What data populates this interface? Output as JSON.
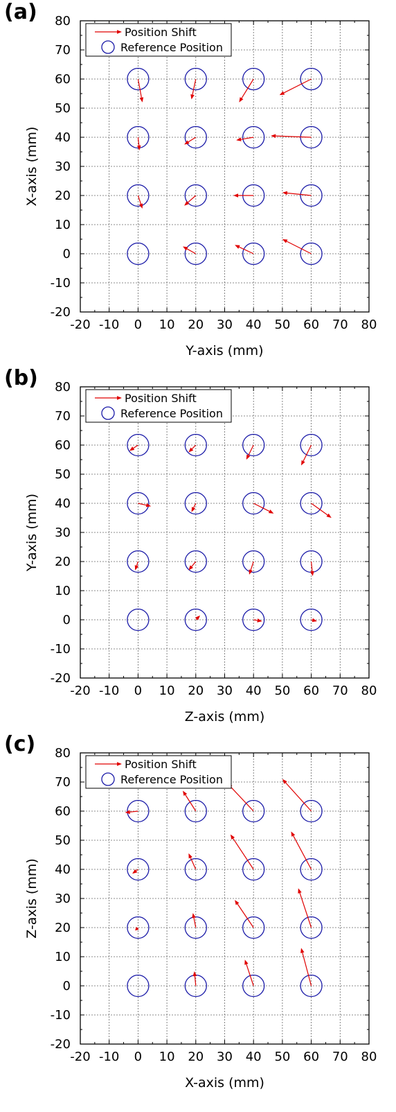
{
  "colors": {
    "arrow": "#e00000",
    "circle": "#1a1aa8",
    "axis": "#000000",
    "grid": "#666666"
  },
  "chart_data": [
    {
      "type": "scatter",
      "panel_label": "(a)",
      "xlabel": "Y-axis (mm)",
      "ylabel": "X-axis (mm)",
      "xlim": [
        -20,
        80
      ],
      "ylim": [
        -20,
        80
      ],
      "ticks": [
        -20,
        -10,
        0,
        10,
        20,
        30,
        40,
        50,
        60,
        70,
        80
      ],
      "grid": true,
      "legend": {
        "placement": "top-left",
        "entries": [
          "Position Shift",
          "Reference Position"
        ]
      },
      "series": [
        {
          "name": "Reference Position",
          "points": [
            [
              0,
              0
            ],
            [
              20,
              0
            ],
            [
              40,
              0
            ],
            [
              60,
              0
            ],
            [
              0,
              20
            ],
            [
              20,
              20
            ],
            [
              40,
              20
            ],
            [
              60,
              20
            ],
            [
              0,
              40
            ],
            [
              20,
              40
            ],
            [
              40,
              40
            ],
            [
              60,
              40
            ],
            [
              0,
              60
            ],
            [
              20,
              60
            ],
            [
              40,
              60
            ],
            [
              60,
              60
            ]
          ]
        },
        {
          "name": "Position Shift",
          "vectors": [
            {
              "from": [
                0,
                0
              ],
              "to": [
                0,
                0
              ]
            },
            {
              "from": [
                20,
                0
              ],
              "to": [
                15.5,
                2.5
              ]
            },
            {
              "from": [
                40,
                0
              ],
              "to": [
                33.5,
                3
              ]
            },
            {
              "from": [
                60,
                0
              ],
              "to": [
                50,
                5
              ]
            },
            {
              "from": [
                0,
                20
              ],
              "to": [
                1.5,
                15.5
              ]
            },
            {
              "from": [
                20,
                20
              ],
              "to": [
                16,
                16.5
              ]
            },
            {
              "from": [
                40,
                20
              ],
              "to": [
                33,
                20
              ]
            },
            {
              "from": [
                60,
                20
              ],
              "to": [
                50,
                21
              ]
            },
            {
              "from": [
                0,
                40
              ],
              "to": [
                0.5,
                35.5
              ]
            },
            {
              "from": [
                20,
                40
              ],
              "to": [
                16,
                37.5
              ]
            },
            {
              "from": [
                40,
                40
              ],
              "to": [
                34,
                39
              ]
            },
            {
              "from": [
                60,
                40
              ],
              "to": [
                46,
                40.5
              ]
            },
            {
              "from": [
                0,
                60
              ],
              "to": [
                1.5,
                52
              ]
            },
            {
              "from": [
                20,
                60
              ],
              "to": [
                18.5,
                53
              ]
            },
            {
              "from": [
                40,
                60
              ],
              "to": [
                35,
                52
              ]
            },
            {
              "from": [
                60,
                60
              ],
              "to": [
                49,
                54.5
              ]
            }
          ]
        }
      ]
    },
    {
      "type": "scatter",
      "panel_label": "(b)",
      "xlabel": "Z-axis (mm)",
      "ylabel": "Y-axis (mm)",
      "xlim": [
        -20,
        80
      ],
      "ylim": [
        -20,
        80
      ],
      "ticks": [
        -20,
        -10,
        0,
        10,
        20,
        30,
        40,
        50,
        60,
        70,
        80
      ],
      "grid": true,
      "legend": {
        "placement": "top-left",
        "entries": [
          "Position Shift",
          "Reference Position"
        ]
      },
      "series": [
        {
          "name": "Reference Position",
          "points": [
            [
              0,
              0
            ],
            [
              20,
              0
            ],
            [
              40,
              0
            ],
            [
              60,
              0
            ],
            [
              0,
              20
            ],
            [
              20,
              20
            ],
            [
              40,
              20
            ],
            [
              60,
              20
            ],
            [
              0,
              40
            ],
            [
              20,
              40
            ],
            [
              40,
              40
            ],
            [
              60,
              40
            ],
            [
              0,
              60
            ],
            [
              20,
              60
            ],
            [
              40,
              60
            ],
            [
              60,
              60
            ]
          ]
        },
        {
          "name": "Position Shift",
          "vectors": [
            {
              "from": [
                0,
                0
              ],
              "to": [
                0,
                0
              ]
            },
            {
              "from": [
                20,
                0
              ],
              "to": [
                21.5,
                1.5
              ]
            },
            {
              "from": [
                40,
                0
              ],
              "to": [
                43,
                -0.5
              ]
            },
            {
              "from": [
                60,
                0
              ],
              "to": [
                62,
                -0.5
              ]
            },
            {
              "from": [
                0,
                20
              ],
              "to": [
                -1,
                17
              ]
            },
            {
              "from": [
                20,
                20
              ],
              "to": [
                17.5,
                17
              ]
            },
            {
              "from": [
                40,
                20
              ],
              "to": [
                38.5,
                15.5
              ]
            },
            {
              "from": [
                60,
                20
              ],
              "to": [
                60.5,
                15
              ]
            },
            {
              "from": [
                0,
                40
              ],
              "to": [
                4.5,
                39
              ]
            },
            {
              "from": [
                20,
                40
              ],
              "to": [
                18.5,
                37
              ]
            },
            {
              "from": [
                40,
                40
              ],
              "to": [
                47,
                36.5
              ]
            },
            {
              "from": [
                60,
                40
              ],
              "to": [
                67,
                35
              ]
            },
            {
              "from": [
                0,
                60
              ],
              "to": [
                -3,
                58
              ]
            },
            {
              "from": [
                20,
                60
              ],
              "to": [
                17.5,
                57.5
              ]
            },
            {
              "from": [
                40,
                60
              ],
              "to": [
                37.5,
                55
              ]
            },
            {
              "from": [
                60,
                60
              ],
              "to": [
                56.5,
                53
              ]
            }
          ]
        }
      ]
    },
    {
      "type": "scatter",
      "panel_label": "(c)",
      "xlabel": "X-axis (mm)",
      "ylabel": "Z-axis (mm)",
      "xlim": [
        -20,
        80
      ],
      "ylim": [
        -20,
        80
      ],
      "ticks": [
        -20,
        -10,
        0,
        10,
        20,
        30,
        40,
        50,
        60,
        70,
        80
      ],
      "grid": true,
      "legend": {
        "placement": "top-left",
        "entries": [
          "Position Shift",
          "Reference Position"
        ]
      },
      "series": [
        {
          "name": "Reference Position",
          "points": [
            [
              0,
              0
            ],
            [
              20,
              0
            ],
            [
              40,
              0
            ],
            [
              60,
              0
            ],
            [
              0,
              20
            ],
            [
              20,
              20
            ],
            [
              40,
              20
            ],
            [
              60,
              20
            ],
            [
              0,
              40
            ],
            [
              20,
              40
            ],
            [
              40,
              40
            ],
            [
              60,
              40
            ],
            [
              0,
              60
            ],
            [
              20,
              60
            ],
            [
              40,
              60
            ],
            [
              60,
              60
            ]
          ]
        },
        {
          "name": "Position Shift",
          "vectors": [
            {
              "from": [
                0,
                0
              ],
              "to": [
                0,
                0
              ]
            },
            {
              "from": [
                20,
                0
              ],
              "to": [
                19.5,
                5
              ]
            },
            {
              "from": [
                40,
                0
              ],
              "to": [
                37,
                9
              ]
            },
            {
              "from": [
                60,
                0
              ],
              "to": [
                56.5,
                13
              ]
            },
            {
              "from": [
                0,
                20
              ],
              "to": [
                -1,
                19
              ]
            },
            {
              "from": [
                20,
                20
              ],
              "to": [
                19,
                25
              ]
            },
            {
              "from": [
                40,
                20
              ],
              "to": [
                33.5,
                29.5
              ]
            },
            {
              "from": [
                60,
                20
              ],
              "to": [
                55.5,
                33.5
              ]
            },
            {
              "from": [
                0,
                40
              ],
              "to": [
                -2,
                38.5
              ]
            },
            {
              "from": [
                20,
                40
              ],
              "to": [
                17.5,
                45.5
              ]
            },
            {
              "from": [
                40,
                40
              ],
              "to": [
                32,
                52
              ]
            },
            {
              "from": [
                60,
                40
              ],
              "to": [
                53,
                53
              ]
            },
            {
              "from": [
                0,
                60
              ],
              "to": [
                -4.5,
                59.5
              ]
            },
            {
              "from": [
                20,
                60
              ],
              "to": [
                15.5,
                67
              ]
            },
            {
              "from": [
                40,
                60
              ],
              "to": [
                31,
                69.5
              ]
            },
            {
              "from": [
                60,
                60
              ],
              "to": [
                50,
                71
              ]
            }
          ]
        }
      ]
    }
  ]
}
